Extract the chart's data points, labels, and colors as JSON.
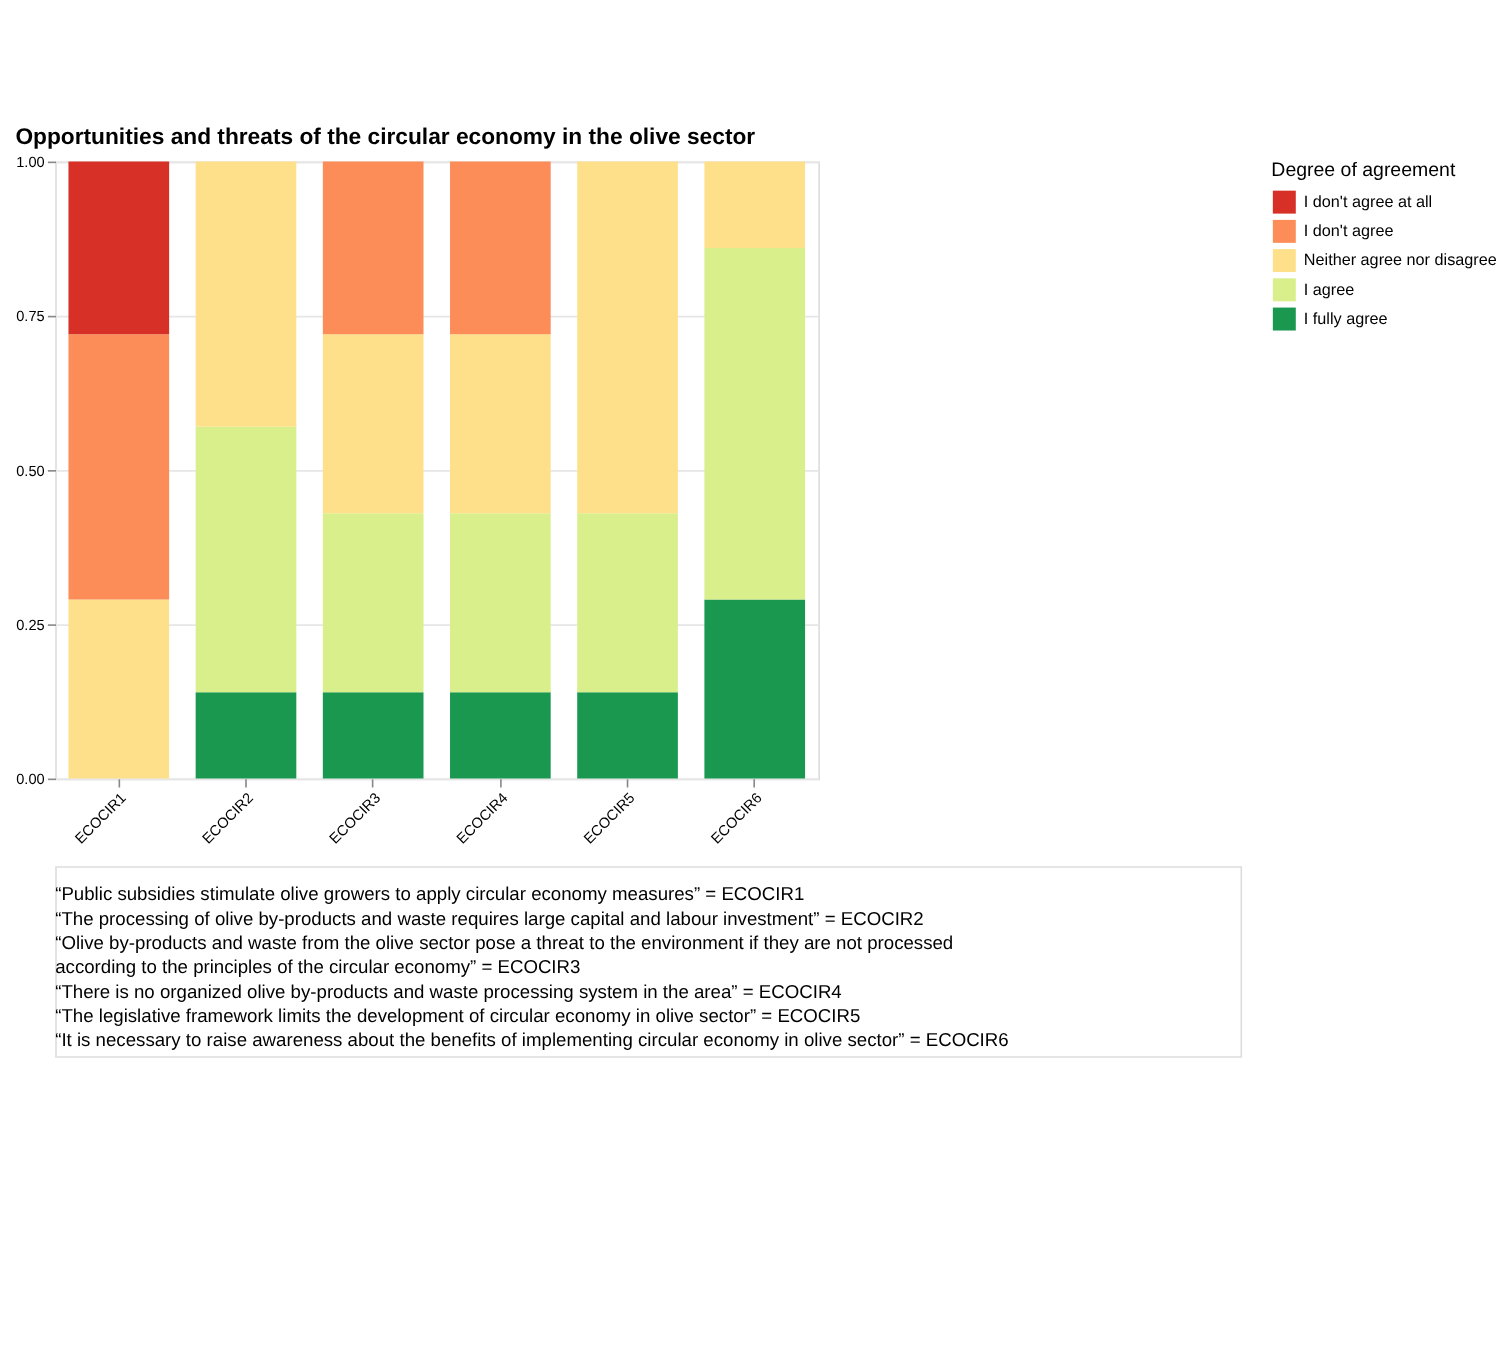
{
  "chart_data": {
    "type": "bar",
    "stacked": true,
    "title": "Opportunities and threats of the circular economy in the olive sector",
    "legend_title": "Degree of agreement",
    "legend": "right",
    "grid": "y",
    "categories": [
      "ECOCIR1",
      "ECOCIR2",
      "ECOCIR3",
      "ECOCIR4",
      "ECOCIR5",
      "ECOCIR6"
    ],
    "series": [
      {
        "name": "I fully agree",
        "color": "#1a9850",
        "values": [
          0,
          0.14,
          0.14,
          0.14,
          0.14,
          0.29
        ]
      },
      {
        "name": "I agree",
        "color": "#d9ef8b",
        "values": [
          0,
          0.43,
          0.29,
          0.29,
          0.29,
          0.57
        ]
      },
      {
        "name": "Neither agree nor disagree",
        "color": "#fee08b",
        "values": [
          0.29,
          0.43,
          0.29,
          0.29,
          0.57,
          0.14
        ]
      },
      {
        "name": "I don't agree",
        "color": "#fc8d59",
        "values": [
          0.43,
          0,
          0.28,
          0.28,
          0,
          0
        ]
      },
      {
        "name": "I don't agree at all",
        "color": "#d73027",
        "values": [
          0.28,
          0,
          0,
          0,
          0,
          0
        ]
      }
    ],
    "ylim": [
      0,
      1
    ],
    "yticks": [
      {
        "value": 0,
        "label": "0.00"
      },
      {
        "value": 0.25,
        "label": "0.25"
      },
      {
        "value": 0.5,
        "label": "0.50"
      },
      {
        "value": 0.75,
        "label": "0.75"
      },
      {
        "value": 1,
        "label": "1.00"
      }
    ],
    "annotations": [
      "“Public subsidies stimulate olive growers to apply circular economy measures” = ECOCIR1",
      "“The processing of olive by-products and waste requires large capital and labour investment” = ECOCIR2",
      "“Olive by-products and waste from the olive sector pose a threat to the environment if they are not processed according to the principles of the circular economy” = ECOCIR3",
      "“There is no organized olive by-products and waste processing system in the area” = ECOCIR4",
      "“The legislative framework limits the development of circular economy in olive sector” = ECOCIR5",
      "“It is necessary to raise awareness about the benefits of implementing circular economy in olive sector” = ECOCIR6"
    ]
  }
}
